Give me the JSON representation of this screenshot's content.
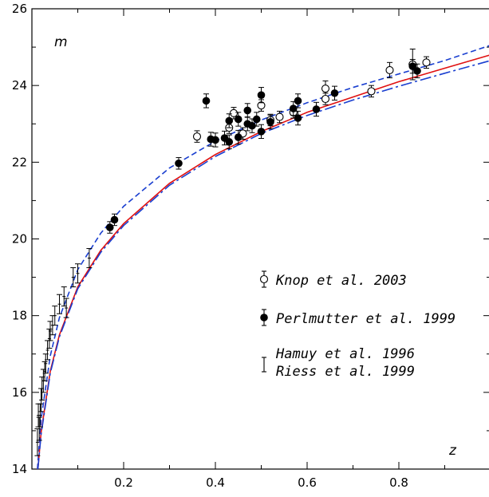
{
  "chart_data": {
    "type": "scatter",
    "title": "",
    "xlabel": "z",
    "ylabel": "m",
    "xlim": [
      0,
      1.0
    ],
    "ylim": [
      14,
      26
    ],
    "x_ticks": [
      "0.2",
      "0.4",
      "0.6",
      "0.8"
    ],
    "y_ticks": [
      "14",
      "16",
      "18",
      "20",
      "22",
      "24",
      "26"
    ],
    "grid": false,
    "legend_position": "right",
    "legend": [
      {
        "marker": "open-circle",
        "label": "Knop et al. 2003"
      },
      {
        "marker": "filled-circle",
        "label": "Perlmutter et al. 1999"
      },
      {
        "marker": "errorbar",
        "label": "Hamuy et al. 1996"
      },
      {
        "marker": "none",
        "label": "Riess et al. 1999"
      }
    ],
    "series": [
      {
        "name": "Knop et al. 2003",
        "marker": "open-circle",
        "points": [
          {
            "x": 0.36,
            "y": 22.67,
            "err": 0.15
          },
          {
            "x": 0.43,
            "y": 22.9,
            "err": 0.15
          },
          {
            "x": 0.44,
            "y": 23.28,
            "err": 0.15
          },
          {
            "x": 0.46,
            "y": 22.75,
            "err": 0.15
          },
          {
            "x": 0.5,
            "y": 23.48,
            "err": 0.15
          },
          {
            "x": 0.52,
            "y": 23.1,
            "err": 0.15
          },
          {
            "x": 0.54,
            "y": 23.18,
            "err": 0.15
          },
          {
            "x": 0.57,
            "y": 23.3,
            "err": 0.15
          },
          {
            "x": 0.64,
            "y": 23.92,
            "err": 0.2
          },
          {
            "x": 0.64,
            "y": 23.65,
            "err": 0.15
          },
          {
            "x": 0.74,
            "y": 23.85,
            "err": 0.15
          },
          {
            "x": 0.78,
            "y": 24.4,
            "err": 0.2
          },
          {
            "x": 0.83,
            "y": 24.55,
            "err": 0.4
          },
          {
            "x": 0.86,
            "y": 24.6,
            "err": 0.15
          }
        ]
      },
      {
        "name": "Perlmutter et al. 1999",
        "marker": "filled-circle",
        "points": [
          {
            "x": 0.17,
            "y": 20.3,
            "err": 0.15
          },
          {
            "x": 0.18,
            "y": 20.5,
            "err": 0.15
          },
          {
            "x": 0.32,
            "y": 21.97,
            "err": 0.15
          },
          {
            "x": 0.38,
            "y": 23.6,
            "err": 0.18
          },
          {
            "x": 0.39,
            "y": 22.6,
            "err": 0.18
          },
          {
            "x": 0.4,
            "y": 22.58,
            "err": 0.18
          },
          {
            "x": 0.42,
            "y": 22.63,
            "err": 0.18
          },
          {
            "x": 0.43,
            "y": 23.08,
            "err": 0.18
          },
          {
            "x": 0.43,
            "y": 22.53,
            "err": 0.18
          },
          {
            "x": 0.45,
            "y": 23.12,
            "err": 0.18
          },
          {
            "x": 0.45,
            "y": 22.65,
            "err": 0.18
          },
          {
            "x": 0.47,
            "y": 23.35,
            "err": 0.18
          },
          {
            "x": 0.47,
            "y": 23.0,
            "err": 0.18
          },
          {
            "x": 0.48,
            "y": 22.95,
            "err": 0.18
          },
          {
            "x": 0.49,
            "y": 23.12,
            "err": 0.18
          },
          {
            "x": 0.5,
            "y": 23.75,
            "err": 0.2
          },
          {
            "x": 0.5,
            "y": 22.8,
            "err": 0.18
          },
          {
            "x": 0.52,
            "y": 23.05,
            "err": 0.18
          },
          {
            "x": 0.57,
            "y": 23.4,
            "err": 0.18
          },
          {
            "x": 0.58,
            "y": 23.6,
            "err": 0.18
          },
          {
            "x": 0.58,
            "y": 23.15,
            "err": 0.18
          },
          {
            "x": 0.62,
            "y": 23.38,
            "err": 0.18
          },
          {
            "x": 0.66,
            "y": 23.8,
            "err": 0.18
          },
          {
            "x": 0.83,
            "y": 24.5,
            "err": 0.18
          },
          {
            "x": 0.84,
            "y": 24.38,
            "err": 0.18
          }
        ]
      },
      {
        "name": "Hamuy et al. 1996 / Riess et al. 1999",
        "marker": "errorbar",
        "points": [
          {
            "x": 0.012,
            "y": 14.7,
            "err": 0.35
          },
          {
            "x": 0.014,
            "y": 15.4,
            "err": 0.3
          },
          {
            "x": 0.016,
            "y": 15.05,
            "err": 0.3
          },
          {
            "x": 0.018,
            "y": 15.4,
            "err": 0.3
          },
          {
            "x": 0.02,
            "y": 15.8,
            "err": 0.3
          },
          {
            "x": 0.022,
            "y": 16.1,
            "err": 0.3
          },
          {
            "x": 0.025,
            "y": 16.3,
            "err": 0.3
          },
          {
            "x": 0.028,
            "y": 16.55,
            "err": 0.25
          },
          {
            "x": 0.03,
            "y": 16.75,
            "err": 0.25
          },
          {
            "x": 0.034,
            "y": 17.1,
            "err": 0.25
          },
          {
            "x": 0.038,
            "y": 17.4,
            "err": 0.25
          },
          {
            "x": 0.04,
            "y": 17.6,
            "err": 0.25
          },
          {
            "x": 0.045,
            "y": 17.75,
            "err": 0.25
          },
          {
            "x": 0.05,
            "y": 18.0,
            "err": 0.25
          },
          {
            "x": 0.06,
            "y": 18.3,
            "err": 0.25
          },
          {
            "x": 0.07,
            "y": 18.5,
            "err": 0.25
          },
          {
            "x": 0.075,
            "y": 18.2,
            "err": 0.25
          },
          {
            "x": 0.09,
            "y": 19.0,
            "err": 0.25
          },
          {
            "x": 0.1,
            "y": 19.1,
            "err": 0.25
          },
          {
            "x": 0.125,
            "y": 19.5,
            "err": 0.25
          }
        ]
      }
    ],
    "curves": [
      {
        "style": "dashed",
        "color": "#1a3fd0",
        "points": [
          [
            0.012,
            14.0
          ],
          [
            0.02,
            15.3
          ],
          [
            0.04,
            16.95
          ],
          [
            0.06,
            17.95
          ],
          [
            0.1,
            19.2
          ],
          [
            0.15,
            20.15
          ],
          [
            0.2,
            20.85
          ],
          [
            0.3,
            21.85
          ],
          [
            0.4,
            22.55
          ],
          [
            0.5,
            23.1
          ],
          [
            0.6,
            23.55
          ],
          [
            0.7,
            23.95
          ],
          [
            0.8,
            24.3
          ],
          [
            0.9,
            24.65
          ],
          [
            1.0,
            25.05
          ]
        ]
      },
      {
        "style": "solid",
        "color": "#e01010",
        "points": [
          [
            0.013,
            14.0
          ],
          [
            0.02,
            14.95
          ],
          [
            0.04,
            16.55
          ],
          [
            0.06,
            17.5
          ],
          [
            0.1,
            18.75
          ],
          [
            0.15,
            19.7
          ],
          [
            0.2,
            20.4
          ],
          [
            0.3,
            21.45
          ],
          [
            0.4,
            22.2
          ],
          [
            0.5,
            22.8
          ],
          [
            0.6,
            23.3
          ],
          [
            0.7,
            23.7
          ],
          [
            0.8,
            24.1
          ],
          [
            0.9,
            24.45
          ],
          [
            1.0,
            24.8
          ]
        ]
      },
      {
        "style": "dashdot",
        "color": "#1a3fd0",
        "points": [
          [
            0.013,
            14.0
          ],
          [
            0.02,
            14.9
          ],
          [
            0.04,
            16.5
          ],
          [
            0.06,
            17.45
          ],
          [
            0.1,
            18.7
          ],
          [
            0.15,
            19.65
          ],
          [
            0.2,
            20.35
          ],
          [
            0.3,
            21.4
          ],
          [
            0.4,
            22.15
          ],
          [
            0.5,
            22.75
          ],
          [
            0.6,
            23.22
          ],
          [
            0.7,
            23.62
          ],
          [
            0.8,
            23.98
          ],
          [
            0.9,
            24.32
          ],
          [
            1.0,
            24.65
          ]
        ]
      }
    ]
  }
}
